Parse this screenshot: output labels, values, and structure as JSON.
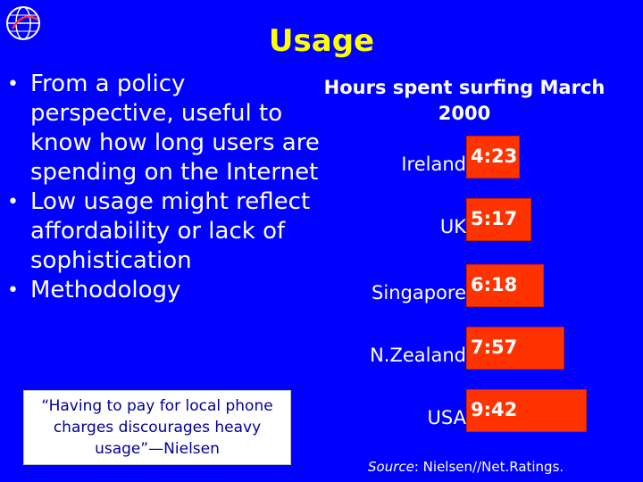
{
  "slide": {
    "title": "Usage",
    "bullets": [
      "From a policy perspective, useful to know how long users are spending on the Internet",
      "Low usage might reflect affordability or lack of sophistication",
      "Methodology"
    ],
    "quote": "“Having to pay for local phone charges discourages heavy usage”—Nielsen",
    "source_label": "Source",
    "source_text": ": Nielsen//Net.Ratings."
  },
  "colors": {
    "background": "#0000ff",
    "title": "#ffff00",
    "bar": "#ff3300"
  },
  "icons": {
    "logo": "itu-globe-logo"
  },
  "chart_data": {
    "type": "bar",
    "orientation": "horizontal",
    "title": "Hours spent surfing March 2000",
    "categories": [
      "Ireland",
      "UK",
      "Singapore",
      "N.Zealand",
      "USA"
    ],
    "value_labels": [
      "4:23",
      "5:17",
      "6:18",
      "7:57",
      "9:42"
    ],
    "values": [
      4.383,
      5.283,
      6.3,
      7.95,
      9.7
    ],
    "xlim": [
      0,
      9.7
    ],
    "grid": false,
    "legend": "none"
  }
}
